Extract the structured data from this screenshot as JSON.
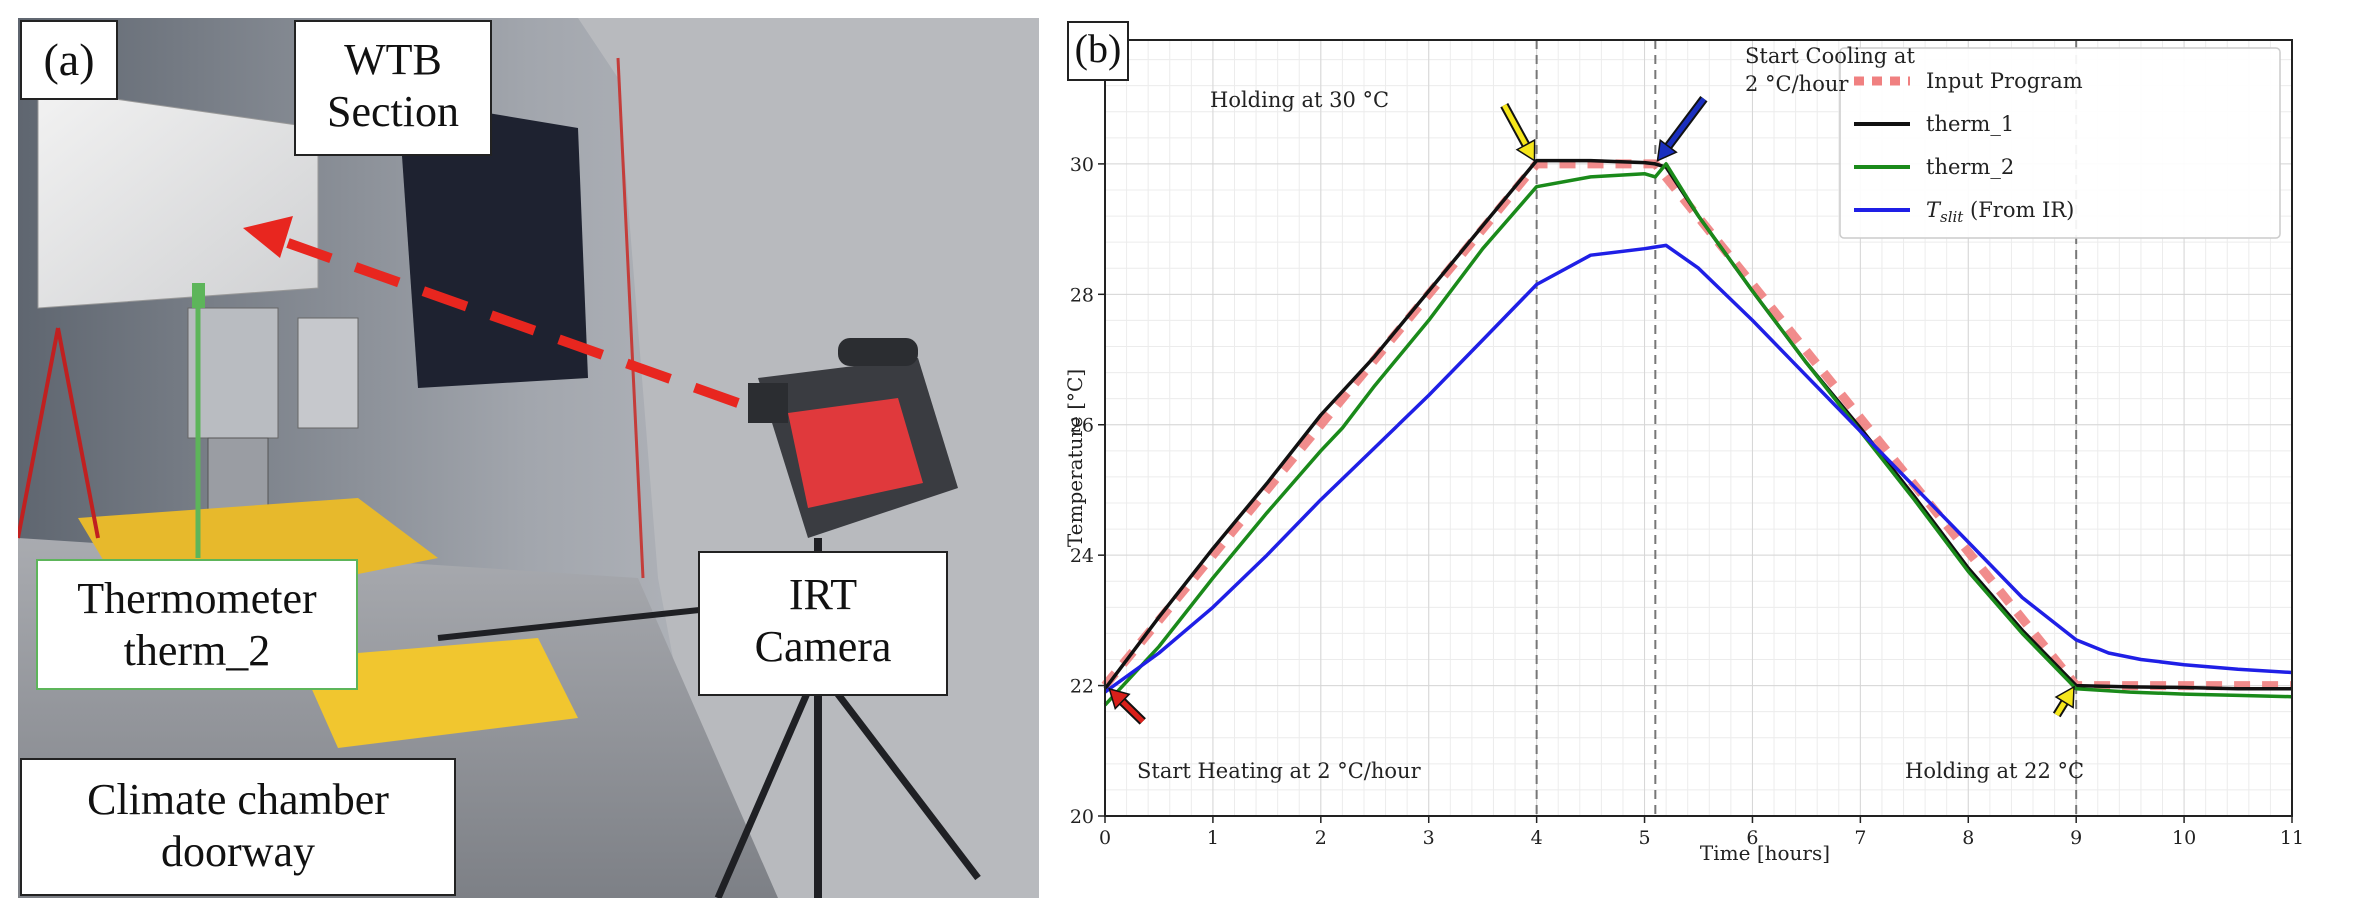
{
  "panel_a": {
    "panel_label": "(a)",
    "wtb_label": [
      "WTB",
      "Section"
    ],
    "thermometer_label": [
      "Thermometer",
      "therm_2"
    ],
    "irt_label": [
      "IRT",
      "Camera"
    ],
    "doorway_label": [
      "Climate chamber",
      "doorway"
    ],
    "colors": {
      "arrow": "#e8261f",
      "thermometer": "#5db55a",
      "camera": "#e0393c"
    }
  },
  "chart_data": {
    "type": "line",
    "panel_label": "(b)",
    "xlabel": "Time [hours]",
    "ylabel": "Temperature [°C]",
    "xlim": [
      0,
      11
    ],
    "ylim": [
      20,
      31.9
    ],
    "xticks": [
      0,
      1,
      2,
      3,
      4,
      5,
      6,
      7,
      8,
      9,
      10,
      11
    ],
    "yticks": [
      20,
      22,
      24,
      26,
      28,
      30
    ],
    "vlines": [
      4,
      5.1,
      9
    ],
    "grid": true,
    "legend_position": "top-right",
    "series": [
      {
        "name": "Input Program",
        "color": "#f08080",
        "style": "dashed",
        "x": [
          0,
          4,
          5.1,
          9,
          11
        ],
        "y": [
          22,
          30,
          30,
          22,
          22
        ]
      },
      {
        "name": "therm_1",
        "color": "#111111",
        "style": "solid",
        "x": [
          0,
          0.5,
          1,
          1.5,
          2,
          2.5,
          3,
          3.5,
          4,
          4.5,
          5,
          5.1,
          5.2,
          5.5,
          6,
          6.5,
          7,
          7.5,
          8,
          8.5,
          9,
          9.5,
          10,
          10.5,
          11
        ],
        "y": [
          21.95,
          23.05,
          24.1,
          25.1,
          26.15,
          27.05,
          28.05,
          29.05,
          30.05,
          30.05,
          30.02,
          30.0,
          29.95,
          29.2,
          28.05,
          26.95,
          25.95,
          24.9,
          23.8,
          22.85,
          22.0,
          21.98,
          21.97,
          21.95,
          21.95
        ]
      },
      {
        "name": "therm_2",
        "color": "#1a8a1a",
        "style": "solid",
        "x": [
          0,
          0.5,
          1,
          1.5,
          2,
          2.2,
          2.5,
          3,
          3.5,
          4,
          4.5,
          5,
          5.1,
          5.2,
          5.5,
          6,
          6.5,
          7,
          7.5,
          8,
          8.5,
          9,
          9.5,
          10,
          10.5,
          11
        ],
        "y": [
          21.7,
          22.6,
          23.65,
          24.65,
          25.6,
          25.95,
          26.6,
          27.6,
          28.7,
          29.65,
          29.8,
          29.85,
          29.8,
          30.0,
          29.2,
          28.05,
          26.95,
          25.9,
          24.85,
          23.75,
          22.8,
          21.95,
          21.9,
          21.87,
          21.85,
          21.83
        ]
      },
      {
        "name": "T_slit (From IR)",
        "color": "#1f1fe6",
        "style": "solid",
        "x": [
          0,
          0.5,
          1,
          1.5,
          2,
          2.5,
          3,
          3.5,
          4,
          4.5,
          5,
          5.2,
          5.5,
          6,
          6.5,
          7,
          7.5,
          8,
          8.5,
          9,
          9.3,
          9.6,
          10,
          10.5,
          11
        ],
        "y": [
          21.9,
          22.5,
          23.2,
          24.0,
          24.85,
          25.65,
          26.45,
          27.3,
          28.15,
          28.6,
          28.7,
          28.75,
          28.4,
          27.6,
          26.75,
          25.9,
          25.05,
          24.2,
          23.35,
          22.7,
          22.5,
          22.4,
          22.32,
          22.25,
          22.2
        ]
      }
    ],
    "legend": {
      "items": [
        "Input Program",
        "therm_1",
        "therm_2"
      ],
      "tslit_symbol": "T",
      "tslit_subscript": "slit",
      "tslit_suffix": " (From IR)"
    },
    "annotations": {
      "holding_30": "Holding at 30 °C",
      "start_cooling": [
        "Start Cooling at",
        "2 °C/hour"
      ],
      "start_heating": "Start Heating at 2 °C/hour",
      "holding_22": "Holding at 22 °C",
      "arrow_colors": {
        "holding_30": "#f5e61b",
        "start_cooling": "#1a2fbf",
        "start_heating": "#d8201a",
        "holding_22": "#f5e61b"
      }
    }
  }
}
